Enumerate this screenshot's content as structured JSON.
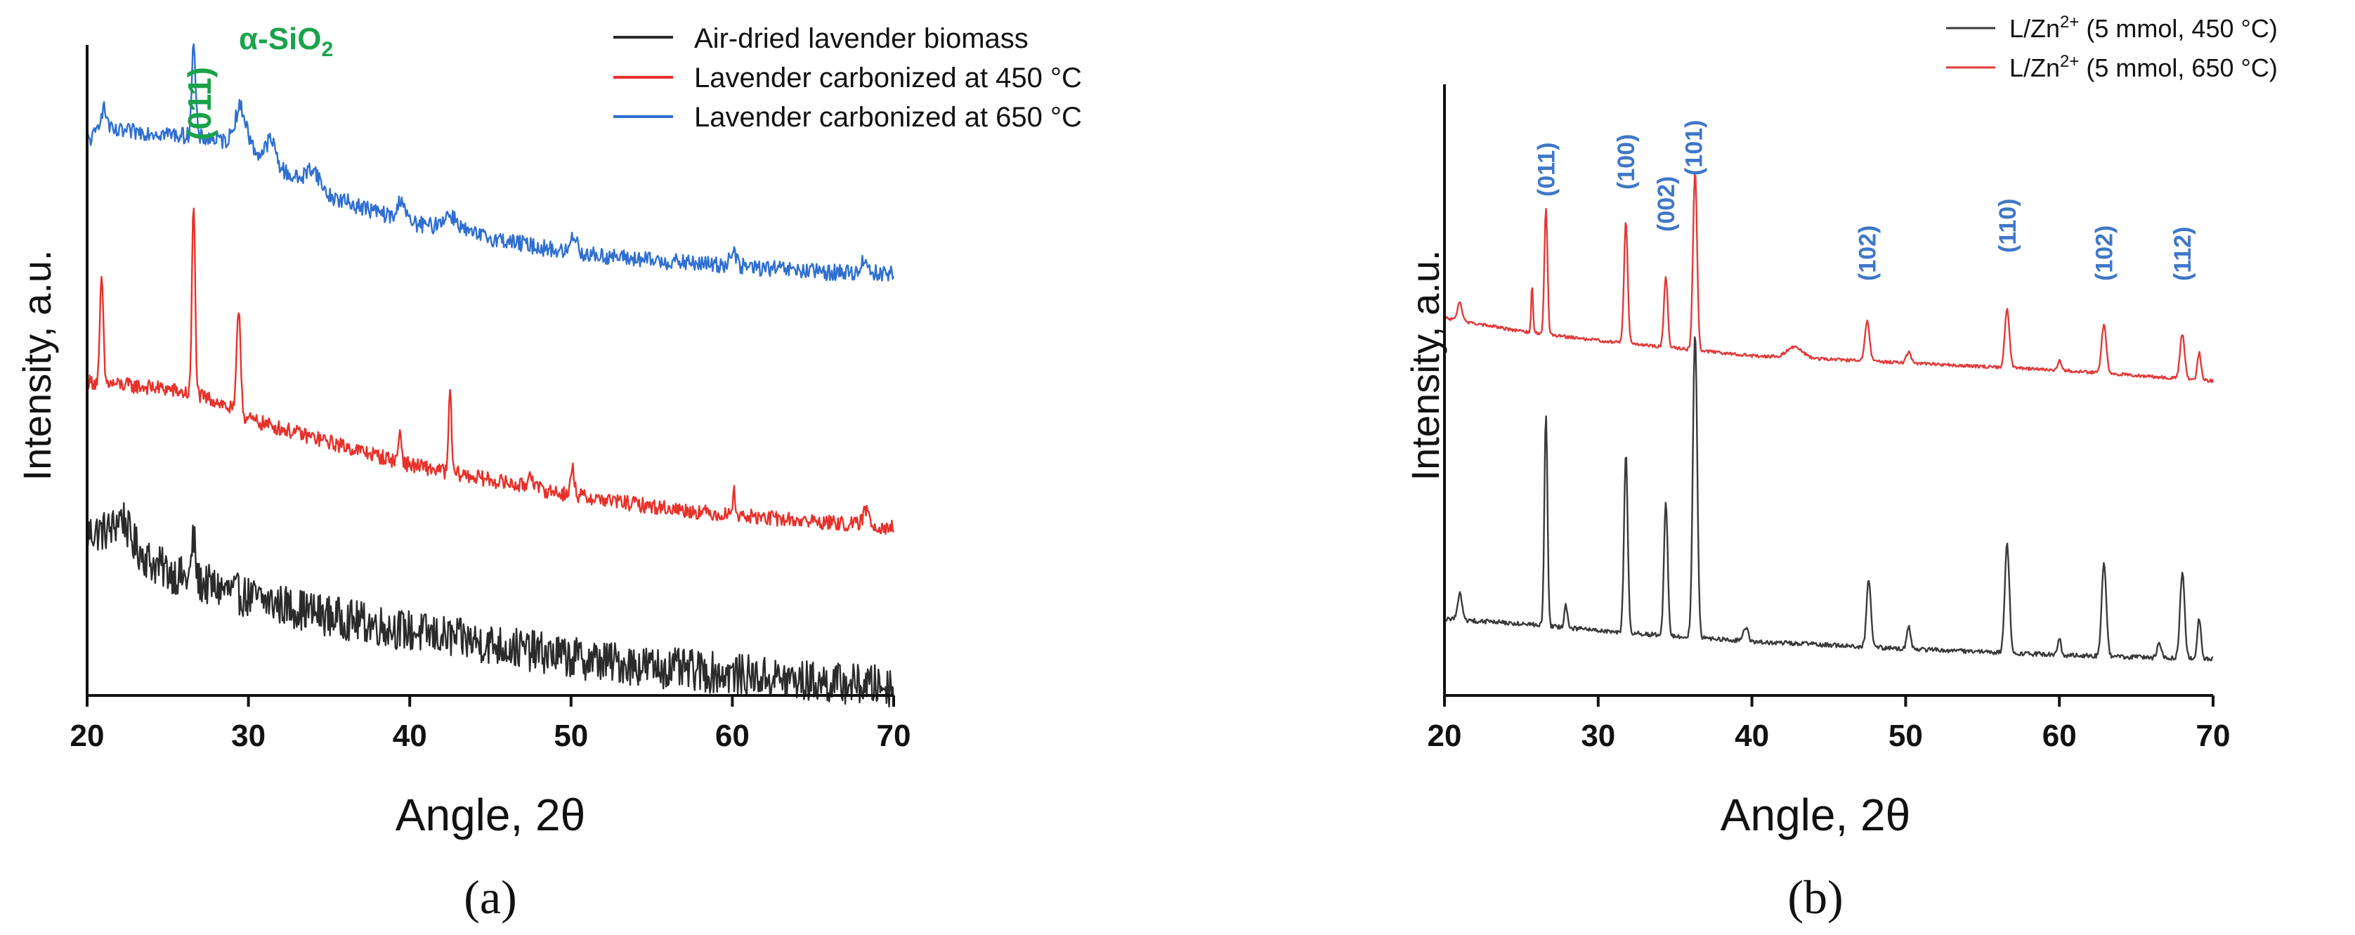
{
  "chart_data": [
    {
      "type": "line",
      "panel_label": "(a)",
      "xlabel": "Angle, 2θ",
      "ylabel": "Intensity, a.u.",
      "xlim": [
        20,
        70
      ],
      "x_ticks": [
        "20",
        "30",
        "40",
        "50",
        "60",
        "70"
      ],
      "y_ticks_labeled": false,
      "legend_position": "top-right",
      "annotations": [
        {
          "text": "(011)",
          "x": 26.6,
          "color": "#1aa24a"
        },
        {
          "text": "α-SiO",
          "subscript": "2",
          "color": "#1aa24a"
        }
      ],
      "series": [
        {
          "name": "Air-dried lavender biomass",
          "color": "#2b2b2b",
          "offset": 0,
          "noise": 0.55,
          "baseline": [
            [
              20,
              2.15
            ],
            [
              22,
              2.2
            ],
            [
              24,
              1.75
            ],
            [
              26,
              1.55
            ],
            [
              30,
              1.3
            ],
            [
              35,
              1.05
            ],
            [
              40,
              0.85
            ],
            [
              45,
              0.68
            ],
            [
              50,
              0.5
            ],
            [
              55,
              0.38
            ],
            [
              60,
              0.28
            ],
            [
              65,
              0.18
            ],
            [
              70,
              0.12
            ]
          ],
          "peaks": [
            [
              26.6,
              0.55,
              0.12
            ],
            [
              22.2,
              0.2,
              0.3
            ]
          ]
        },
        {
          "name": "Lavender carbonized at 450 °C",
          "color": "#e8312a",
          "offset": 0,
          "noise": 0.2,
          "baseline": [
            [
              20,
              4.15
            ],
            [
              25,
              4.05
            ],
            [
              28,
              3.9
            ],
            [
              30,
              3.65
            ],
            [
              35,
              3.35
            ],
            [
              40,
              3.05
            ],
            [
              45,
              2.85
            ],
            [
              50,
              2.65
            ],
            [
              55,
              2.5
            ],
            [
              60,
              2.38
            ],
            [
              65,
              2.3
            ],
            [
              70,
              2.22
            ]
          ],
          "peaks": [
            [
              20.9,
              1.4,
              0.1
            ],
            [
              26.6,
              2.5,
              0.1
            ],
            [
              29.4,
              1.4,
              0.12
            ],
            [
              39.4,
              0.4,
              0.1
            ],
            [
              42.5,
              1.15,
              0.08
            ],
            [
              47.5,
              0.2,
              0.15
            ],
            [
              50.1,
              0.35,
              0.12
            ],
            [
              60.1,
              0.3,
              0.1
            ],
            [
              68.3,
              0.2,
              0.2
            ]
          ]
        },
        {
          "name": "Lavender carbonized at 650 °C",
          "color": "#2f6fd1",
          "offset": 0,
          "noise": 0.22,
          "baseline": [
            [
              20,
              7.35
            ],
            [
              22,
              7.45
            ],
            [
              24,
              7.45
            ],
            [
              26,
              7.4
            ],
            [
              28,
              7.35
            ],
            [
              30,
              7.25
            ],
            [
              32,
              6.95
            ],
            [
              35,
              6.6
            ],
            [
              40,
              6.25
            ],
            [
              45,
              6.05
            ],
            [
              50,
              5.85
            ],
            [
              55,
              5.75
            ],
            [
              60,
              5.68
            ],
            [
              65,
              5.6
            ],
            [
              70,
              5.58
            ]
          ],
          "peaks": [
            [
              21.0,
              0.35,
              0.25
            ],
            [
              26.6,
              1.2,
              0.12
            ],
            [
              29.5,
              0.5,
              0.35
            ],
            [
              31.4,
              0.3,
              0.3
            ],
            [
              34.0,
              0.25,
              0.4
            ],
            [
              39.5,
              0.3,
              0.2
            ],
            [
              42.5,
              0.2,
              0.5
            ],
            [
              50.2,
              0.25,
              0.2
            ],
            [
              60.0,
              0.2,
              0.2
            ],
            [
              68.2,
              0.18,
              0.2
            ]
          ]
        }
      ]
    },
    {
      "type": "line",
      "panel_label": "(b)",
      "xlabel": "Angle, 2θ",
      "ylabel": "Intensity, a.u.",
      "xlim": [
        20,
        70
      ],
      "x_ticks": [
        "20",
        "30",
        "40",
        "50",
        "60",
        "70"
      ],
      "y_ticks_labeled": false,
      "legend_position": "top-right",
      "annotations": [
        {
          "text": "(011)",
          "x": 26.6,
          "color": "#3f77c8"
        },
        {
          "text": "(100)",
          "x": 31.8,
          "color": "#3f77c8"
        },
        {
          "text": "(002)",
          "x": 34.4,
          "color": "#3f77c8"
        },
        {
          "text": "(101)",
          "x": 36.2,
          "color": "#3f77c8"
        },
        {
          "text": "(102)",
          "x": 47.5,
          "color": "#3f77c8"
        },
        {
          "text": "(110)",
          "x": 56.6,
          "color": "#3f77c8"
        },
        {
          "text": "(102)",
          "x": 62.9,
          "color": "#3f77c8"
        },
        {
          "text": "(112)",
          "x": 68.0,
          "color": "#3f77c8"
        }
      ],
      "series": [
        {
          "name": "L/Zn",
          "name_sup": "2+",
          "name_rest": " (5 mmol, 450 °C)",
          "color": "#3a3a3a",
          "noise": 0.05,
          "baseline": [
            [
              20,
              0.85
            ],
            [
              25,
              0.8
            ],
            [
              30,
              0.72
            ],
            [
              40,
              0.6
            ],
            [
              50,
              0.52
            ],
            [
              60,
              0.45
            ],
            [
              70,
              0.4
            ]
          ],
          "peaks": [
            [
              21.0,
              0.3,
              0.15
            ],
            [
              26.6,
              2.35,
              0.1
            ],
            [
              27.9,
              0.25,
              0.1
            ],
            [
              31.8,
              2.0,
              0.12
            ],
            [
              34.4,
              1.5,
              0.12
            ],
            [
              36.3,
              3.4,
              0.14
            ],
            [
              39.6,
              0.15,
              0.15
            ],
            [
              47.6,
              0.75,
              0.14
            ],
            [
              50.2,
              0.25,
              0.12
            ],
            [
              56.6,
              1.2,
              0.15
            ],
            [
              60.0,
              0.2,
              0.1
            ],
            [
              62.9,
              1.05,
              0.15
            ],
            [
              66.5,
              0.15,
              0.15
            ],
            [
              68.0,
              0.95,
              0.15
            ],
            [
              69.1,
              0.45,
              0.12
            ]
          ]
        },
        {
          "name": "L/Zn",
          "name_sup": "2+",
          "name_rest": " (5 mmol, 650 °C)",
          "color": "#e23a3a",
          "noise": 0.035,
          "baseline": [
            [
              20,
              4.2
            ],
            [
              25,
              4.05
            ],
            [
              30,
              3.95
            ],
            [
              40,
              3.78
            ],
            [
              50,
              3.7
            ],
            [
              60,
              3.62
            ],
            [
              70,
              3.5
            ]
          ],
          "peaks": [
            [
              21.0,
              0.2,
              0.15
            ],
            [
              25.7,
              0.55,
              0.06
            ],
            [
              26.6,
              1.4,
              0.1
            ],
            [
              31.8,
              1.35,
              0.12
            ],
            [
              34.4,
              0.8,
              0.12
            ],
            [
              36.3,
              2.0,
              0.13
            ],
            [
              42.8,
              0.12,
              0.5
            ],
            [
              47.5,
              0.45,
              0.15
            ],
            [
              50.2,
              0.12,
              0.15
            ],
            [
              56.6,
              0.65,
              0.15
            ],
            [
              60.0,
              0.12,
              0.1
            ],
            [
              62.9,
              0.55,
              0.15
            ],
            [
              68.0,
              0.5,
              0.15
            ],
            [
              69.1,
              0.3,
              0.12
            ]
          ]
        }
      ]
    }
  ]
}
